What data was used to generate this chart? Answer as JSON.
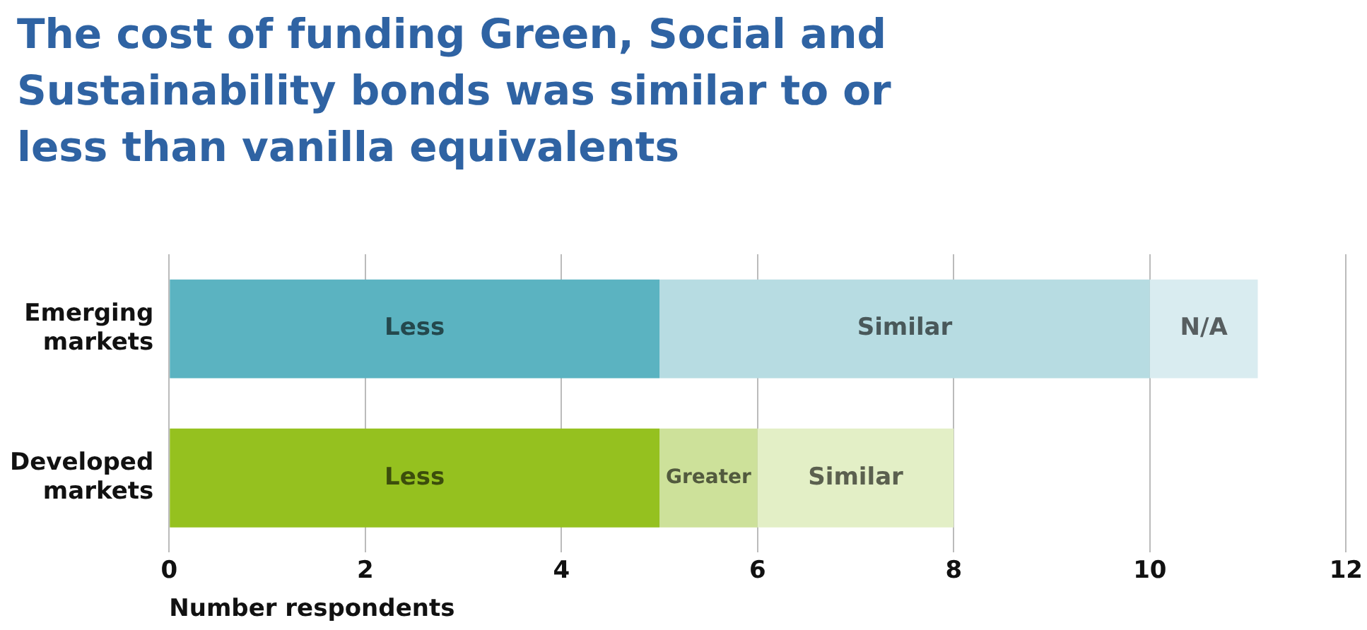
{
  "chart_data": {
    "type": "bar",
    "orientation": "horizontal",
    "stacked": true,
    "title": "The cost of funding Green, Social and Sustainability bonds was similar to or less than vanilla equivalents",
    "xlabel": "Number respondents",
    "categories": [
      "Emerging markets",
      "Developed markets"
    ],
    "series": [
      {
        "name": "Less",
        "colors": [
          "#5bb3c1",
          "#95c11f"
        ],
        "values": [
          5,
          5
        ]
      },
      {
        "name": "Greater",
        "colors": [
          "#cde19a",
          "#cde19a"
        ],
        "values": [
          null,
          1
        ]
      },
      {
        "name": "Similar",
        "colors": [
          "#b7dce2",
          "#e3efc6"
        ],
        "values": [
          5,
          2
        ]
      },
      {
        "name": "N/A",
        "colors": [
          "#d9ecf0",
          "#d9ecf0"
        ],
        "values": [
          1.1,
          null
        ]
      }
    ],
    "xlim": [
      0,
      12
    ],
    "xticks": [
      0,
      2,
      4,
      6,
      8,
      10,
      12
    ],
    "grid": "x",
    "legend": false
  }
}
